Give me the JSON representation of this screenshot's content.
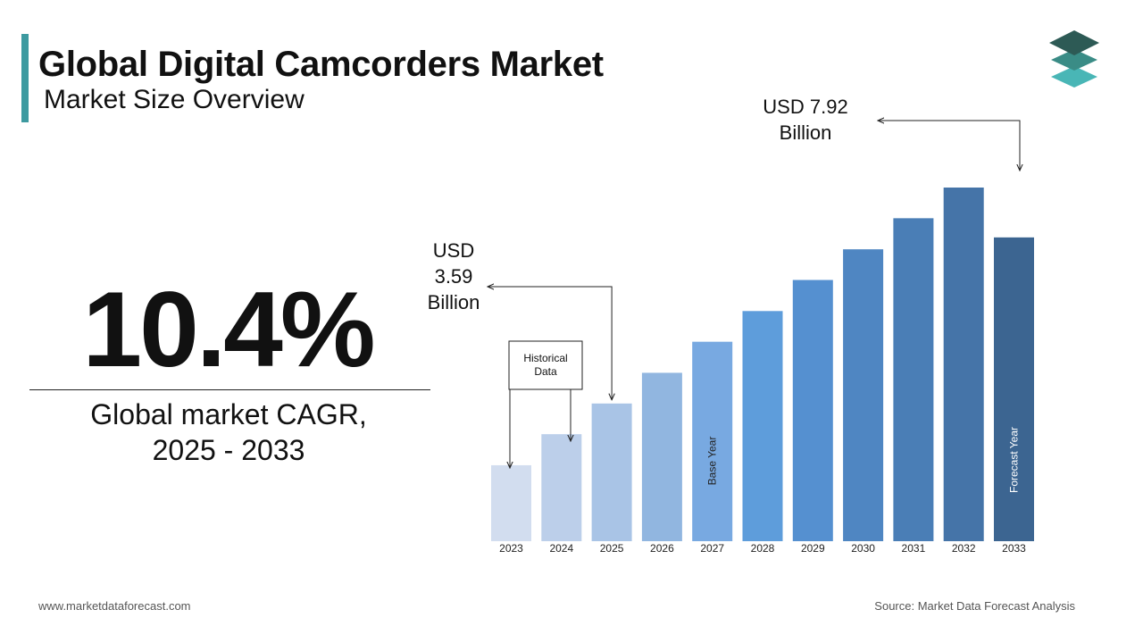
{
  "header": {
    "title": "Global Digital Camcorders Market",
    "subtitle": "Market Size Overview"
  },
  "cagr": {
    "value": "10.4%",
    "label_line1": "Global market CAGR,",
    "label_line2": "2025 - 2033"
  },
  "footer": {
    "website": "www.marketdataforecast.com",
    "source": "Source: Market Data Forecast Analysis"
  },
  "logo": {
    "icon": "stacked-layers-icon"
  },
  "chart_data": {
    "type": "bar",
    "categories": [
      "2023",
      "2024",
      "2025",
      "2026",
      "2027",
      "2028",
      "2029",
      "2030",
      "2031",
      "2032",
      "2033"
    ],
    "values": [
      1.98,
      2.79,
      3.59,
      4.39,
      5.2,
      6.0,
      6.81,
      7.61,
      8.42,
      9.22,
      7.92
    ],
    "colors": [
      "#d2ddef",
      "#bccfea",
      "#a9c4e6",
      "#91b6e0",
      "#78a9e1",
      "#5e9ddb",
      "#5590d0",
      "#4f86c2",
      "#4a7eb6",
      "#4574a8",
      "#3c6591"
    ],
    "annotations": {
      "start_value": "USD\n3.59\nBillion",
      "end_value": "USD 7.92\nBillion",
      "historical_label": "Historical\nData",
      "base_year_label": "Base Year",
      "forecast_year_label": "Forecast Year"
    }
  }
}
